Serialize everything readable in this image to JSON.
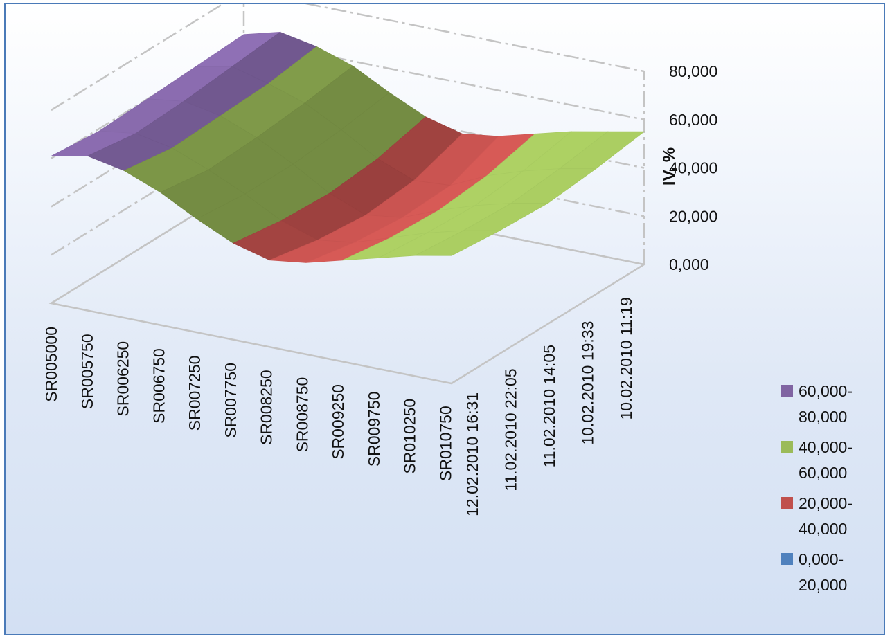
{
  "chart_data": {
    "type": "surface",
    "title": "",
    "zlabel": "IV, %",
    "zlim": [
      0,
      80
    ],
    "z_ticks": [
      "0,000",
      "20,000",
      "40,000",
      "60,000",
      "80,000"
    ],
    "x_categories": [
      "SR005000",
      "SR005750",
      "SR006250",
      "SR006750",
      "SR007250",
      "SR007750",
      "SR008250",
      "SR008750",
      "SR009250",
      "SR009750",
      "SR010250",
      "SR010750"
    ],
    "y_categories": [
      "12.02.2010 16:31",
      "11.02.2010 22:05",
      "11.02.2010 14:05",
      "10.02.2010 19:33",
      "10.02.2010 11:19"
    ],
    "bands": [
      {
        "name": "60,000-80,000",
        "color": "#8064a2",
        "legend": [
          "60,000-",
          "80,000"
        ]
      },
      {
        "name": "40,000-60,000",
        "color": "#9bbb59",
        "legend": [
          "40,000-",
          "60,000"
        ]
      },
      {
        "name": "20,000-40,000",
        "color": "#c0504d",
        "legend": [
          "20,000-",
          "40,000"
        ]
      },
      {
        "name": "0,000-20,000",
        "color": "#4f81bd",
        "legend": [
          "0,000-",
          "20,000"
        ]
      }
    ],
    "z_values": [
      [
        61,
        64,
        61,
        55,
        47,
        40,
        36,
        38,
        42,
        46,
        50,
        53
      ],
      [
        59,
        61,
        58,
        52,
        45,
        37,
        32,
        34,
        39,
        44,
        48,
        51
      ],
      [
        60,
        62,
        59,
        53,
        45,
        36,
        30,
        32,
        38,
        43,
        47,
        50
      ],
      [
        61,
        64,
        60,
        55,
        47,
        38,
        32,
        33,
        40,
        45,
        49,
        52
      ],
      [
        62,
        66,
        63,
        58,
        50,
        43,
        39,
        41,
        45,
        49,
        52,
        55
      ]
    ],
    "grid": true,
    "legend_position": "right"
  }
}
